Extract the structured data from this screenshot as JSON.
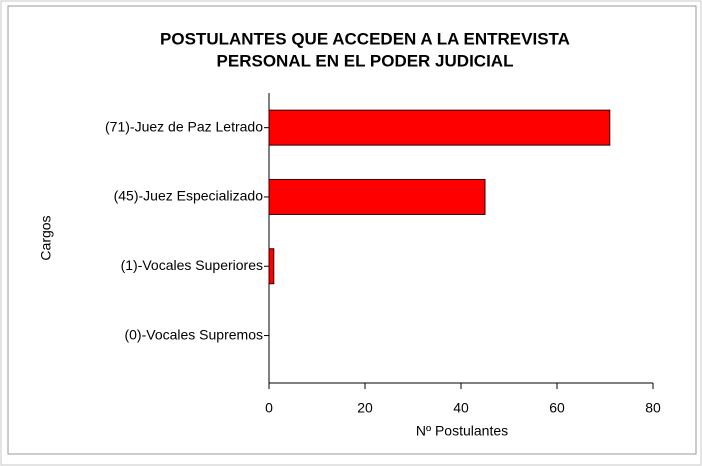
{
  "chart_data": {
    "type": "bar",
    "orientation": "horizontal",
    "title": [
      "POSTULANTES QUE ACCEDEN A LA ENTREVISTA",
      "PERSONAL EN EL PODER JUDICIAL"
    ],
    "categories": [
      "(71)-Juez de Paz Letrado",
      "(45)-Juez Especializado",
      "(1)-Vocales Superiores",
      "(0)-Vocales Supremos"
    ],
    "values": [
      71,
      45,
      1,
      0
    ],
    "color": "#ff0000",
    "xlim": [
      0,
      80
    ],
    "xticks": [
      0,
      20,
      40,
      60,
      80
    ],
    "xlabel": "Nº Postulantes",
    "ylabel": "Cargos",
    "grid": false
  }
}
